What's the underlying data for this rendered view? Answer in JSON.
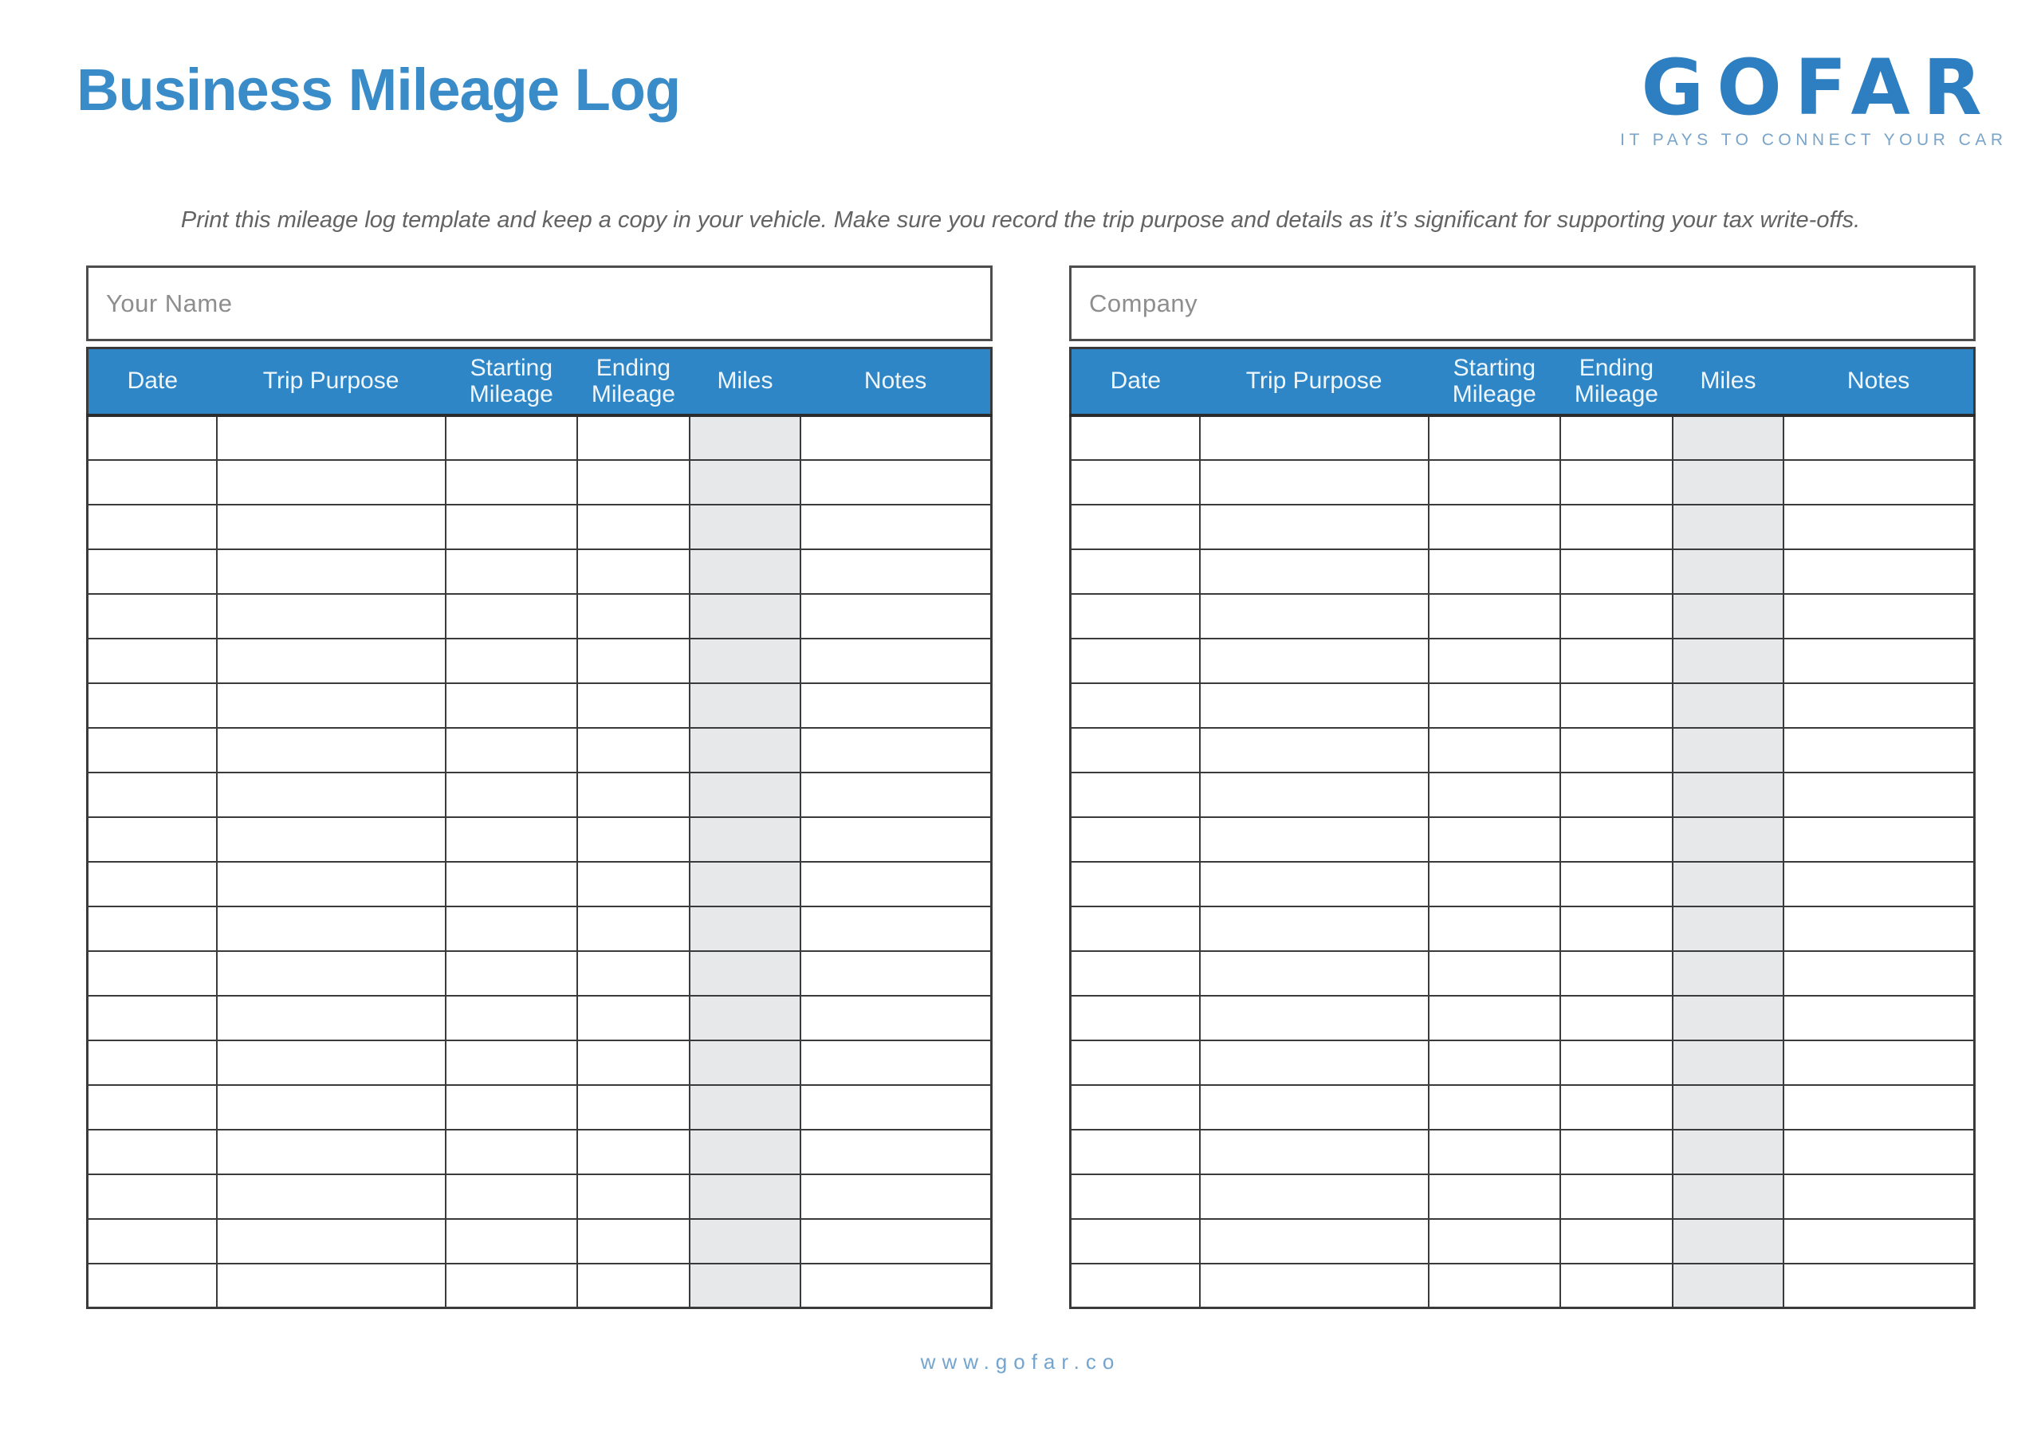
{
  "page": {
    "title": "Business Mileage Log",
    "instruction": "Print this mileage log template and keep a copy in your vehicle. Make sure you record the trip purpose and details as it’s significant for supporting your tax write-offs.",
    "footer_url": "www.gofar.co"
  },
  "logo": {
    "text": "GOFAR",
    "tagline": "IT PAYS TO CONNECT YOUR CAR"
  },
  "tables": {
    "columns": [
      "Date",
      "Trip Purpose",
      "Starting Mileage",
      "Ending Mileage",
      "Miles",
      "Notes"
    ],
    "column_widths_pct": [
      14.3,
      25.3,
      14.6,
      12.4,
      12.3,
      21.1
    ],
    "rows_per_table": 20,
    "miles_col_index": 4,
    "left": {
      "name_label": "Your Name"
    },
    "right": {
      "name_label": "Company"
    }
  },
  "colors": {
    "title-blue": "#3a8cc9",
    "logo-blue": "#2e7fc2",
    "tagline-blue": "#7aa4c8",
    "header-bg": "#2e86c7",
    "header-text": "#eef6fb",
    "border-dark": "#3a3a3a",
    "miles-gray": "#e6e8e9",
    "label-gray": "#8e8e8e",
    "instruction-gray": "#636363",
    "footer-blue": "#74a5cf"
  }
}
